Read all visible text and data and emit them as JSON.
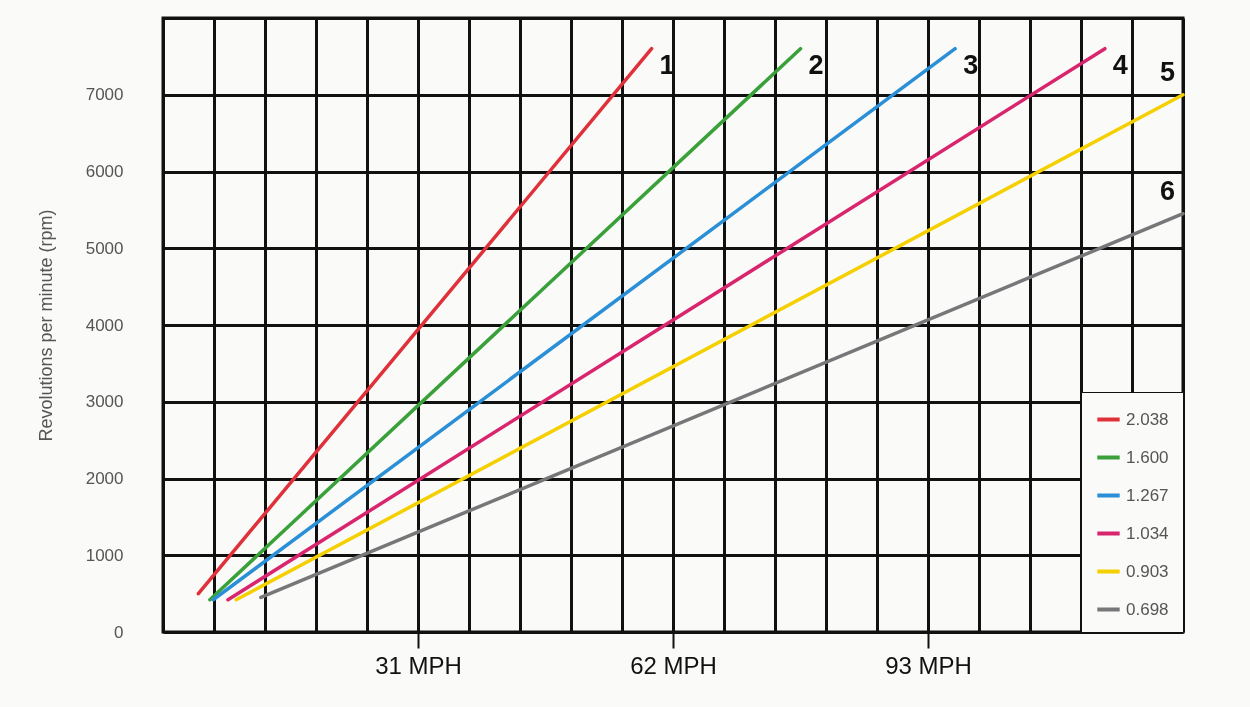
{
  "chart_data": {
    "type": "line",
    "ylabel": "Revolutions per minute (rpm)",
    "xlim": [
      0,
      124
    ],
    "ylim": [
      0,
      8000
    ],
    "xticks": [
      {
        "value": 0,
        "label": null
      },
      {
        "value": 6.2,
        "label": null
      },
      {
        "value": 12.4,
        "label": null
      },
      {
        "value": 18.6,
        "label": null
      },
      {
        "value": 24.8,
        "label": null
      },
      {
        "value": 31,
        "label": "31 MPH"
      },
      {
        "value": 37.2,
        "label": null
      },
      {
        "value": 43.4,
        "label": null
      },
      {
        "value": 49.6,
        "label": null
      },
      {
        "value": 55.8,
        "label": null
      },
      {
        "value": 62,
        "label": "62 MPH"
      },
      {
        "value": 68.2,
        "label": null
      },
      {
        "value": 74.4,
        "label": null
      },
      {
        "value": 80.6,
        "label": null
      },
      {
        "value": 86.8,
        "label": null
      },
      {
        "value": 93,
        "label": "93 MPH"
      },
      {
        "value": 99.2,
        "label": null
      },
      {
        "value": 105.4,
        "label": null
      },
      {
        "value": 111.6,
        "label": null
      },
      {
        "value": 117.8,
        "label": null
      },
      {
        "value": 124,
        "label": null
      }
    ],
    "yticks": [
      0,
      1000,
      2000,
      3000,
      4000,
      5000,
      6000,
      7000,
      {
        "value": 8000,
        "label": null
      }
    ],
    "grid": true,
    "legend": "bottom right",
    "series": [
      {
        "name": "2.038",
        "color": "#e0303a",
        "x": [
          4.3,
          59.4
        ],
        "values": [
          500,
          7600
        ]
      },
      {
        "name": "1.600",
        "color": "#3aa13a",
        "x": [
          5.7,
          77.5
        ],
        "values": [
          420,
          7600
        ]
      },
      {
        "name": "1.267",
        "color": "#2a8fd6",
        "x": [
          6.1,
          96.3
        ],
        "values": [
          420,
          7600
        ]
      },
      {
        "name": "1.034",
        "color": "#d9246e",
        "x": [
          7.9,
          114.5
        ],
        "values": [
          420,
          7600
        ]
      },
      {
        "name": "0.903",
        "color": "#f5d000",
        "x": [
          8.9,
          124
        ],
        "values": [
          420,
          7000
        ]
      },
      {
        "name": "0.698",
        "color": "#77777a",
        "x": [
          11.9,
          124
        ],
        "values": [
          450,
          5450
        ]
      }
    ],
    "annotations": [
      {
        "text": "1",
        "x": 59.4,
        "y": 7600
      },
      {
        "text": "2",
        "x": 77.5,
        "y": 7600
      },
      {
        "text": "3",
        "x": 96.3,
        "y": 7600
      },
      {
        "text": "4",
        "x": 114.5,
        "y": 7600
      },
      {
        "text": "5",
        "x": 124,
        "y": 7000
      },
      {
        "text": "6",
        "x": 124,
        "y": 5450
      }
    ]
  }
}
